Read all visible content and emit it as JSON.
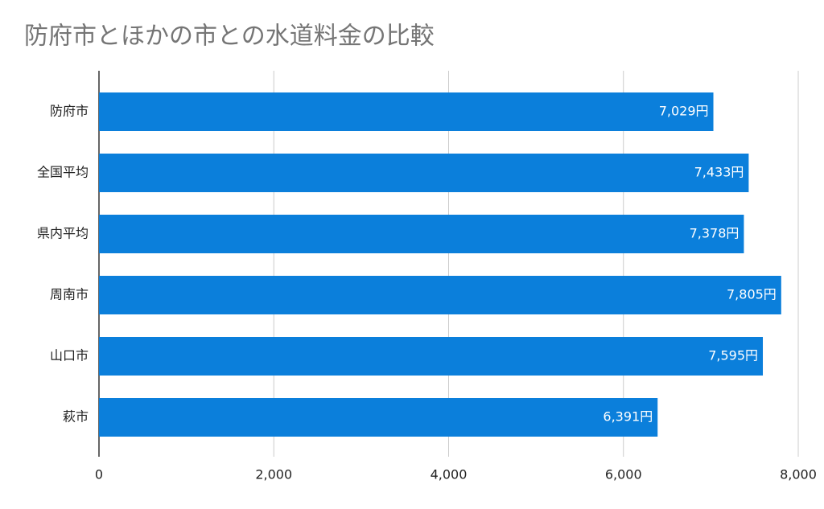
{
  "chart_data": {
    "type": "hbar",
    "title": "防府市とほかの市との水道料金の比較",
    "categories": [
      "防府市",
      "全国平均",
      "県内平均",
      "周南市",
      "山口市",
      "萩市"
    ],
    "values": [
      7029,
      7433,
      7378,
      7805,
      7595,
      6391
    ],
    "value_labels": [
      "7,029円",
      "7,433円",
      "7,378円",
      "7,805円",
      "7,595円",
      "6,391円"
    ],
    "color": "#0b7fdb",
    "xlim": [
      0,
      8000
    ],
    "xticks": [
      0,
      {
        "value": 2000,
        "label": "2,000"
      },
      {
        "value": 4000,
        "label": "4,000"
      },
      {
        "value": 6000,
        "label": "6,000"
      },
      {
        "value": 8000,
        "label": "8,000"
      }
    ],
    "grid": true
  }
}
